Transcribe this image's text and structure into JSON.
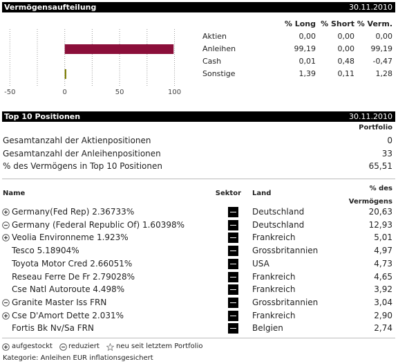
{
  "allocation": {
    "title": "Vermögensaufteilung",
    "date": "30.11.2010",
    "columns": [
      "% Long",
      "% Short",
      "% Verm."
    ],
    "rows": [
      {
        "label": "Aktien",
        "cells": [
          "0,00",
          "0,00",
          "0,00"
        ]
      },
      {
        "label": "Anleihen",
        "cells": [
          "99,19",
          "0,00",
          "99,19"
        ]
      },
      {
        "label": "Cash",
        "cells": [
          "0,01",
          "0,48",
          "-0,47"
        ]
      },
      {
        "label": "Sonstige",
        "cells": [
          "1,39",
          "0,11",
          "1,28"
        ]
      }
    ]
  },
  "chart_data": {
    "type": "hbar",
    "categories": [
      "Aktien",
      "Anleihen",
      "Cash",
      "Sonstige"
    ],
    "values": [
      0,
      99.19,
      0.01,
      1.39
    ],
    "colors": [
      "#8b0f3a",
      "#8b0f3a",
      "#7a7a00",
      "#7a7a00"
    ],
    "xlim": [
      -59,
      111
    ],
    "xticks": [
      -50,
      0,
      50,
      100
    ],
    "minor_xticks": [
      -25,
      25,
      75
    ],
    "grid": true
  },
  "positions": {
    "title": "Top 10 Positionen",
    "date": "30.11.2010",
    "summary_header": "Portfolio",
    "summary": [
      {
        "label": "Gesamtanzahl der Aktienpositionen",
        "value": "0"
      },
      {
        "label": "Gesamtanzahl der Anleihenpositionen",
        "value": "33"
      },
      {
        "label": "% des Vermögens in Top 10 Positionen",
        "value": "65,51"
      }
    ],
    "headers": {
      "name": "Name",
      "sector": "Sektor",
      "country": "Land",
      "share": "% des Vermögens"
    },
    "rows": [
      {
        "icon": "plus",
        "name": "Germany(Fed Rep) 2.36733%",
        "country": "Deutschland",
        "share": "20,63"
      },
      {
        "icon": "minus",
        "name": "Germany (Federal Republic Of) 1.60398%",
        "country": "Deutschland",
        "share": "12,93"
      },
      {
        "icon": "plus",
        "name": "Veolia Environneme 1.923%",
        "country": "Frankreich",
        "share": "5,01"
      },
      {
        "icon": null,
        "name": "Tesco 5.18904%",
        "country": "Grossbritannien",
        "share": "4,97"
      },
      {
        "icon": null,
        "name": "Toyota Motor Cred 2.66051%",
        "country": "USA",
        "share": "4,73"
      },
      {
        "icon": null,
        "name": "Reseau Ferre De Fr 2.79028%",
        "country": "Frankreich",
        "share": "4,65"
      },
      {
        "icon": null,
        "name": "Cse Natl Autoroute 4.498%",
        "country": "Frankreich",
        "share": "3,92"
      },
      {
        "icon": "minus",
        "name": "Granite Master Iss FRN",
        "country": "Grossbritannien",
        "share": "3,04"
      },
      {
        "icon": "plus",
        "name": "Cse D'Amort Dette 2.031%",
        "country": "Frankreich",
        "share": "2,90"
      },
      {
        "icon": null,
        "name": "Fortis Bk Nv/Sa FRN",
        "country": "Belgien",
        "share": "2,74"
      }
    ]
  },
  "footer": {
    "legend": [
      "aufgestockt",
      "reduziert",
      "neu seit letztem Portfolio"
    ],
    "category": "Kategorie: Anleihen EUR inflationsgesichert"
  }
}
